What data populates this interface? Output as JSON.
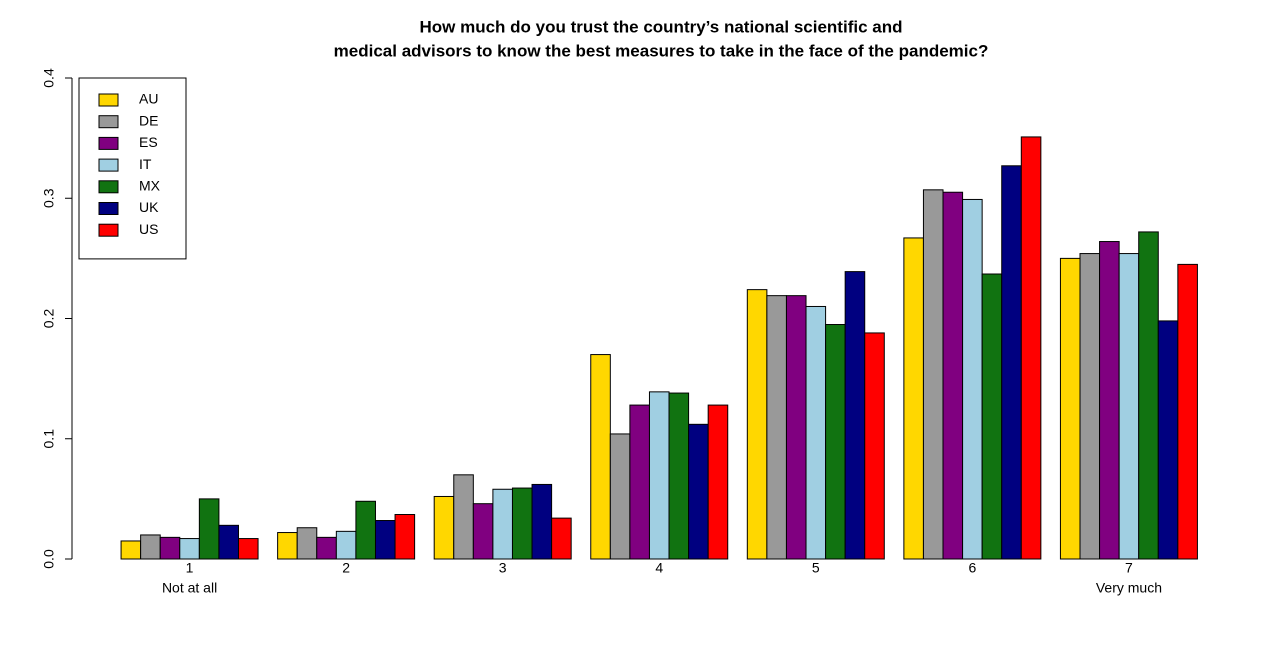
{
  "chart_data": {
    "type": "bar",
    "title": [
      "How much do you trust the country’s national scientific and",
      "medical advisors to know the best measures to take in the face of the pandemic?"
    ],
    "categories": [
      "1",
      "2",
      "3",
      "4",
      "5",
      "6",
      "7"
    ],
    "category_sublabels": [
      "Not at all",
      null,
      null,
      null,
      null,
      null,
      "Very much"
    ],
    "series": [
      {
        "name": "AU",
        "color": "#ffd700",
        "values": [
          0.015,
          0.022,
          0.052,
          0.17,
          0.224,
          0.267,
          0.25
        ]
      },
      {
        "name": "DE",
        "color": "#999999",
        "values": [
          0.02,
          0.026,
          0.07,
          0.104,
          0.219,
          0.307,
          0.254
        ]
      },
      {
        "name": "ES",
        "color": "#800080",
        "values": [
          0.018,
          0.018,
          0.046,
          0.128,
          0.219,
          0.305,
          0.264
        ]
      },
      {
        "name": "IT",
        "color": "#a0cfe2",
        "values": [
          0.017,
          0.023,
          0.058,
          0.139,
          0.21,
          0.299,
          0.254
        ]
      },
      {
        "name": "MX",
        "color": "#117311",
        "values": [
          0.05,
          0.048,
          0.059,
          0.138,
          0.195,
          0.237,
          0.272
        ]
      },
      {
        "name": "UK",
        "color": "#000080",
        "values": [
          0.028,
          0.032,
          0.062,
          0.112,
          0.239,
          0.327,
          0.198
        ]
      },
      {
        "name": "US",
        "color": "#ff0000",
        "values": [
          0.017,
          0.037,
          0.034,
          0.128,
          0.188,
          0.351,
          0.245
        ]
      }
    ],
    "ylim": [
      0,
      0.4
    ],
    "yticks": [
      {
        "value": 0,
        "label": "0.0"
      },
      0.1,
      0.2,
      0.3,
      0.4
    ],
    "legend": "top-left"
  }
}
